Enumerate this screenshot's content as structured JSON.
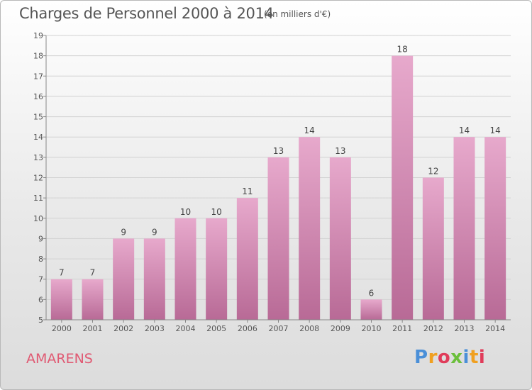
{
  "header": {
    "title": "Charges de Personnel 2000 à 2014",
    "subtitle": "(en milliers d'€)"
  },
  "footer": {
    "commune": "AMARENS",
    "logo_letters": [
      "P",
      "r",
      "o",
      "x",
      "i",
      "t",
      "i"
    ],
    "logo_colors": [
      "#4a8fd8",
      "#f0a020",
      "#e03c5a",
      "#6bbf3b",
      "#4a8fd8",
      "#f0a020",
      "#e03c5a"
    ]
  },
  "chart_data": {
    "type": "bar",
    "title": "Charges de Personnel 2000 à 2014",
    "subtitle": "(en milliers d'€)",
    "xlabel": "",
    "ylabel": "",
    "categories": [
      "2000",
      "2001",
      "2002",
      "2003",
      "2004",
      "2005",
      "2006",
      "2007",
      "2008",
      "2009",
      "2010",
      "2011",
      "2012",
      "2013",
      "2014"
    ],
    "values": [
      7,
      7,
      9,
      9,
      10,
      10,
      11,
      13,
      14,
      13,
      6,
      18,
      12,
      14,
      14
    ],
    "ylim": [
      5,
      19
    ],
    "yticks": [
      5,
      6,
      7,
      8,
      9,
      10,
      11,
      12,
      13,
      14,
      15,
      16,
      17,
      18,
      19
    ],
    "grid": true,
    "bar_color_top": "#e7a9cc",
    "bar_color_bottom": "#b86a96"
  }
}
